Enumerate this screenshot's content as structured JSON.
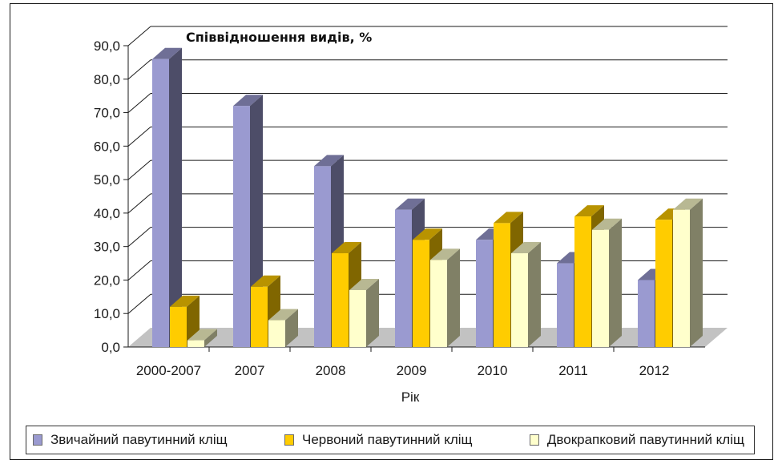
{
  "chart_data": {
    "type": "bar",
    "title": "Співвідношення видів, %",
    "xlabel": "Рік",
    "ylabel": "",
    "ylim": [
      0,
      90
    ],
    "yticks": [
      "0,0",
      "10,0",
      "20,0",
      "30,0",
      "40,0",
      "50,0",
      "60,0",
      "70,0",
      "80,0",
      "90,0"
    ],
    "categories": [
      "2000-2007",
      "2007",
      "2008",
      "2009",
      "2010",
      "2011",
      "2012"
    ],
    "series": [
      {
        "name": "Звичайний павутинний кліщ",
        "color": "#9a9ad0",
        "values": [
          86,
          72,
          54,
          41,
          32,
          25,
          20
        ]
      },
      {
        "name": "Червоний павутинний кліщ",
        "color": "#ffcc00",
        "values": [
          12,
          18,
          28,
          32,
          37,
          39,
          38
        ]
      },
      {
        "name": "Двокрапковий павутинний кліщ",
        "color": "#ffffcc",
        "values": [
          2,
          8,
          17,
          26,
          28,
          35,
          41
        ]
      }
    ],
    "grid": true,
    "legend_position": "bottom"
  }
}
